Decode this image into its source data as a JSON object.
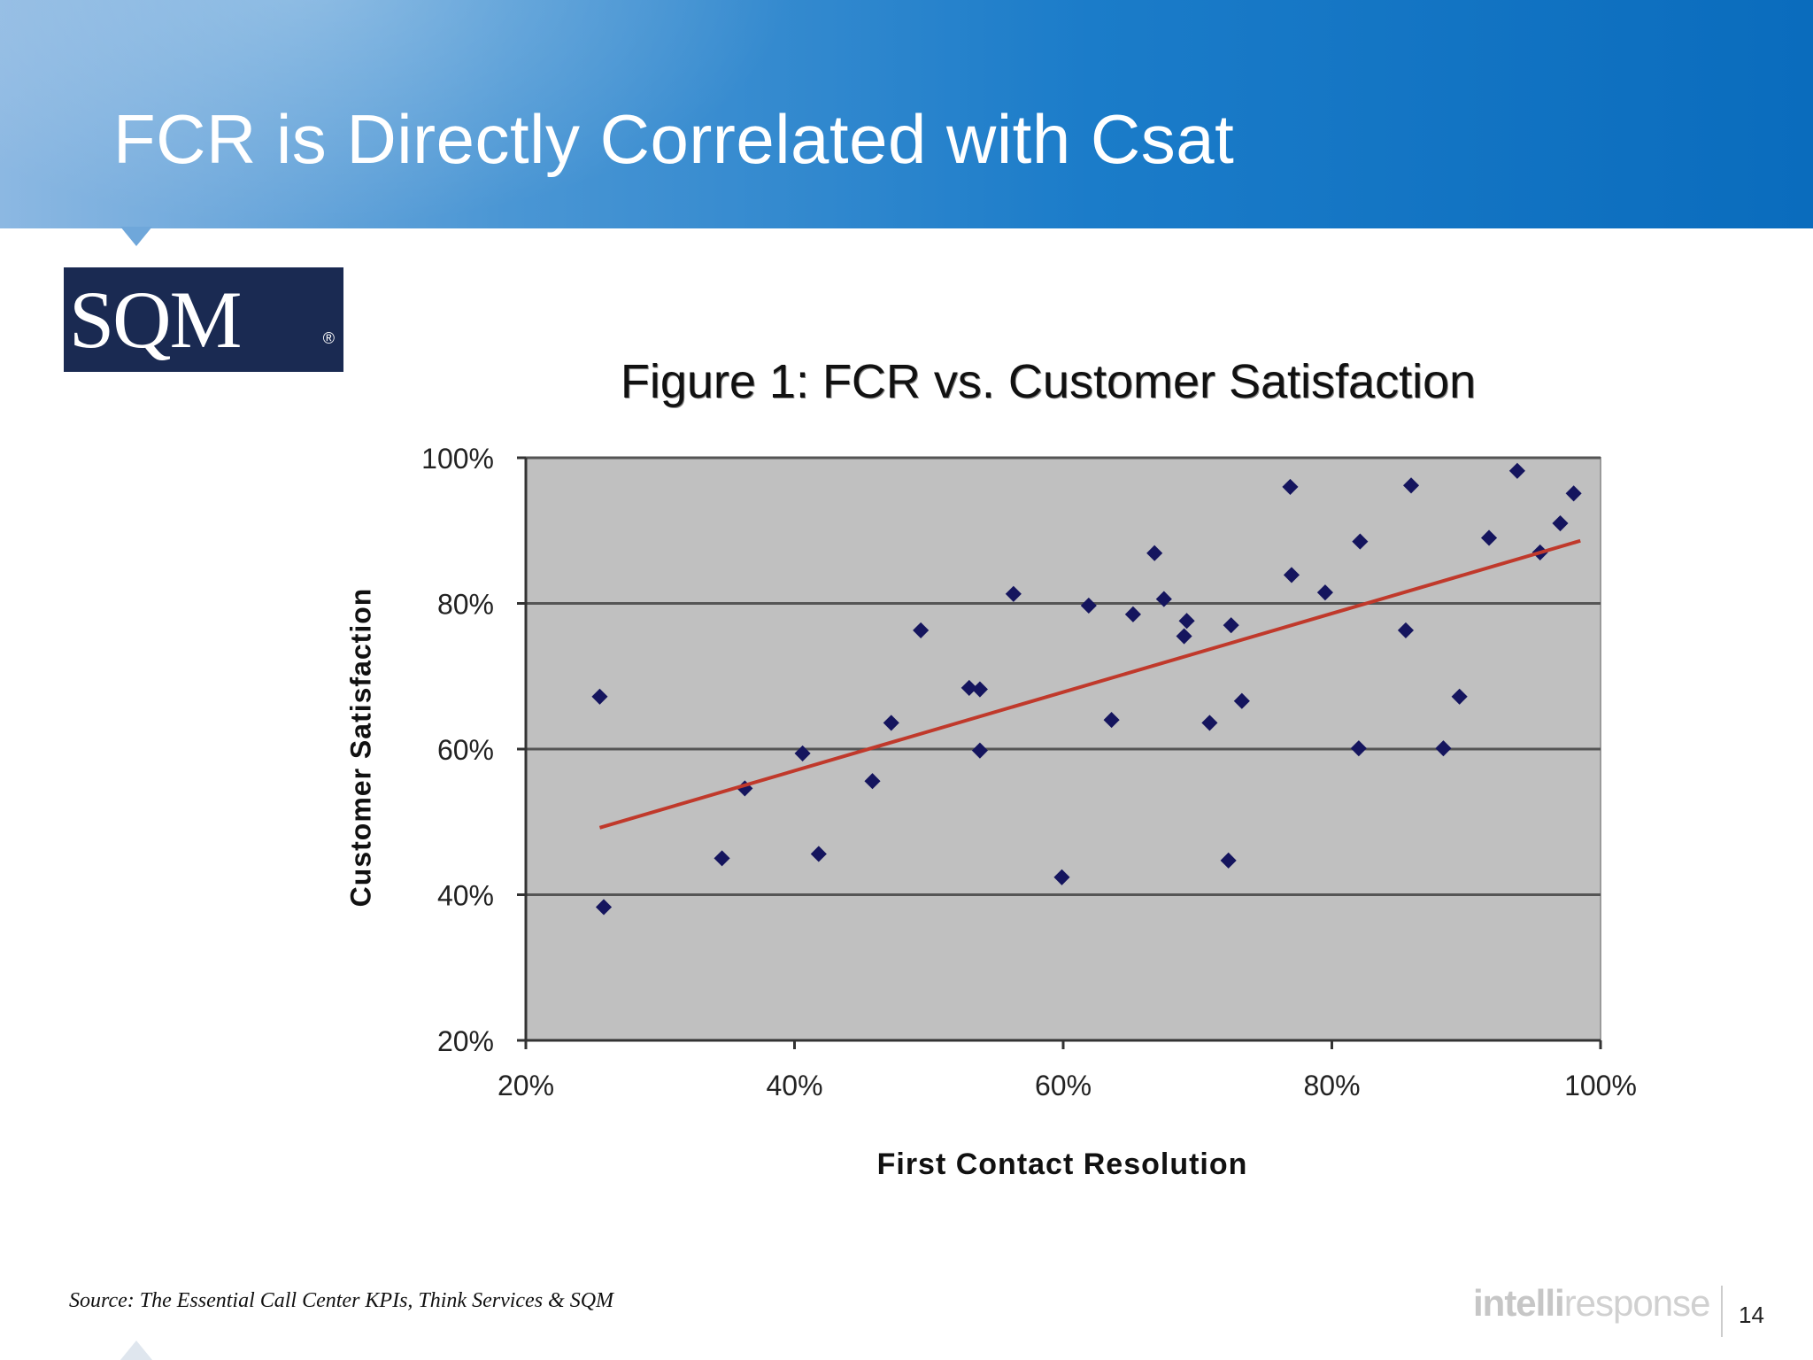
{
  "slide": {
    "title": "FCR is Directly Correlated with Csat",
    "page_number": "14",
    "source": "Source: The Essential Call Center KPIs, Think Services & SQM",
    "logo_text": "SQM",
    "logo_reg": "®",
    "brand_intelli": "intelli",
    "brand_response": "response"
  },
  "colors": {
    "plot_background": "#c0c0c0",
    "marker": "#15155e",
    "trendline": "#c0392b",
    "gridline": "#555555"
  },
  "chart_data": {
    "type": "scatter",
    "title": "Figure 1: FCR vs. Customer Satisfaction",
    "xlabel": "First Contact Resolution",
    "ylabel": "Customer Satisfaction",
    "xlim": [
      0.2,
      1.0
    ],
    "ylim": [
      0.2,
      1.0
    ],
    "x_tick_labels": [
      "20%",
      "40%",
      "60%",
      "80%",
      "100%"
    ],
    "x_tick_values": [
      0.2,
      0.4,
      0.6,
      0.8,
      1.0
    ],
    "y_tick_labels": [
      "20%",
      "40%",
      "60%",
      "80%",
      "100%"
    ],
    "y_tick_values": [
      0.2,
      0.4,
      0.6,
      0.8,
      1.0
    ],
    "grid": "horizontal",
    "legend": "none",
    "marker": "diamond",
    "points": [
      [
        0.255,
        0.672
      ],
      [
        0.258,
        0.383
      ],
      [
        0.346,
        0.45
      ],
      [
        0.363,
        0.546
      ],
      [
        0.406,
        0.594
      ],
      [
        0.418,
        0.456
      ],
      [
        0.458,
        0.556
      ],
      [
        0.472,
        0.636
      ],
      [
        0.494,
        0.763
      ],
      [
        0.53,
        0.684
      ],
      [
        0.538,
        0.682
      ],
      [
        0.538,
        0.598
      ],
      [
        0.563,
        0.813
      ],
      [
        0.599,
        0.424
      ],
      [
        0.619,
        0.797
      ],
      [
        0.636,
        0.64
      ],
      [
        0.652,
        0.785
      ],
      [
        0.668,
        0.869
      ],
      [
        0.675,
        0.806
      ],
      [
        0.69,
        0.755
      ],
      [
        0.692,
        0.776
      ],
      [
        0.709,
        0.636
      ],
      [
        0.723,
        0.447
      ],
      [
        0.725,
        0.77
      ],
      [
        0.733,
        0.666
      ],
      [
        0.769,
        0.96
      ],
      [
        0.77,
        0.839
      ],
      [
        0.795,
        0.815
      ],
      [
        0.82,
        0.601
      ],
      [
        0.821,
        0.885
      ],
      [
        0.855,
        0.763
      ],
      [
        0.859,
        0.962
      ],
      [
        0.883,
        0.601
      ],
      [
        0.895,
        0.672
      ],
      [
        0.917,
        0.89
      ],
      [
        0.938,
        0.982
      ],
      [
        0.955,
        0.87
      ],
      [
        0.97,
        0.91
      ],
      [
        0.98,
        0.951
      ]
    ],
    "trendline": {
      "x": [
        0.255,
        0.985
      ],
      "y": [
        0.492,
        0.886
      ]
    }
  }
}
